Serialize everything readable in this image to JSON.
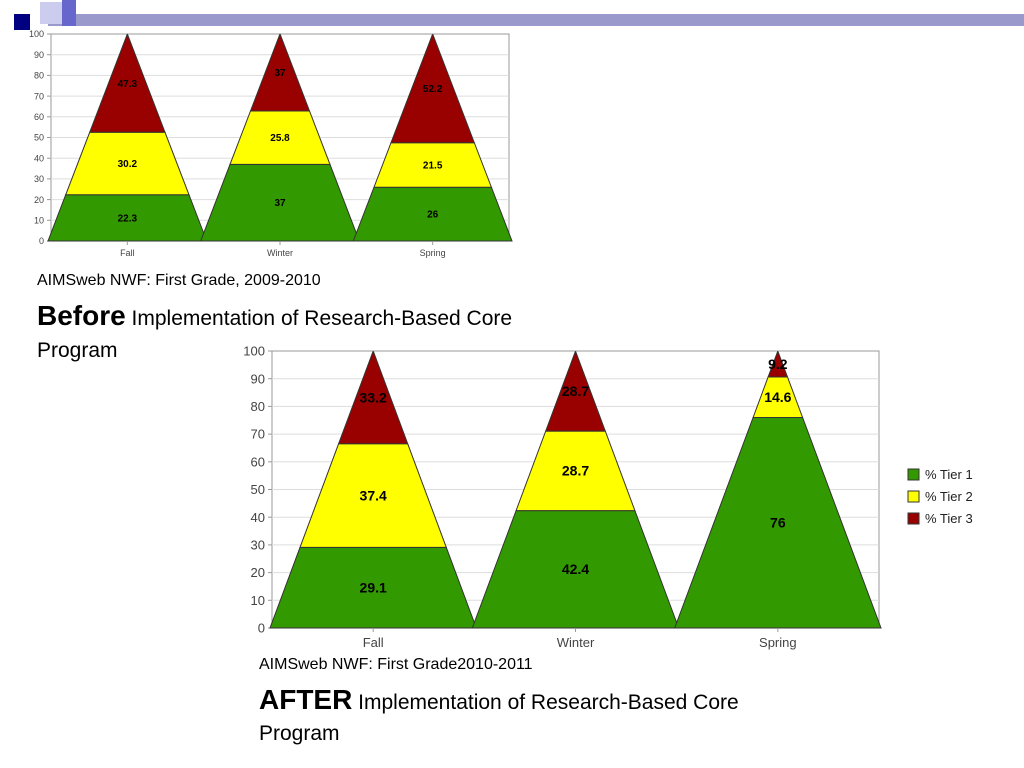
{
  "colors": {
    "tier1": "#339900",
    "tier2": "#FFFF00",
    "tier3": "#990000",
    "deco_navy": "#000080",
    "deco_blue": "#6666CC"
  },
  "captions": {
    "before": {
      "line1": "AIMSweb NWF:  First Grade, 2009-2010",
      "emphasis": "Before",
      "rest": " Implementation of Research-Based Core",
      "line3": "Program"
    },
    "after": {
      "line1": "AIMSweb NWF:  First Grade2010-2011",
      "emphasis": "AFTER",
      "rest": " Implementation of Research-Based Core",
      "line3": "Program"
    }
  },
  "chart_data": [
    {
      "type": "bar",
      "stacked": true,
      "mark_shape": "triangle",
      "categories": [
        "Fall",
        "Winter",
        "Spring"
      ],
      "series": [
        {
          "name": "% Tier 1",
          "color": "#339900",
          "values": [
            22.3,
            37,
            26
          ]
        },
        {
          "name": "% Tier 2",
          "color": "#FFFF00",
          "values": [
            30.2,
            25.8,
            21.5
          ]
        },
        {
          "name": "% Tier 3",
          "color": "#990000",
          "values": [
            47.3,
            37,
            52.2
          ]
        }
      ],
      "data_labels": [
        [
          "22.3",
          "37",
          "26"
        ],
        [
          "30.2",
          "25.8",
          "21.5"
        ],
        [
          "47.3",
          "37",
          "52.2"
        ]
      ],
      "ylim": [
        0,
        100
      ],
      "yticks": [
        "0",
        "10",
        "20",
        "30",
        "40",
        "50",
        "60",
        "70",
        "80",
        "90",
        "100"
      ],
      "grid": true,
      "legend": "none"
    },
    {
      "type": "bar",
      "stacked": true,
      "mark_shape": "triangle",
      "categories": [
        "Fall",
        "Winter",
        "Spring"
      ],
      "series": [
        {
          "name": "% Tier 1",
          "color": "#339900",
          "values": [
            29.1,
            42.4,
            76
          ]
        },
        {
          "name": "% Tier 2",
          "color": "#FFFF00",
          "values": [
            37.4,
            28.7,
            14.6
          ]
        },
        {
          "name": "% Tier 3",
          "color": "#990000",
          "values": [
            33.2,
            28.7,
            9.2
          ]
        }
      ],
      "data_labels": [
        [
          "29.1",
          "42.4",
          "76"
        ],
        [
          "37.4",
          "28.7",
          "14.6"
        ],
        [
          "33.2",
          "28.7",
          "9.2"
        ]
      ],
      "ylim": [
        0,
        100
      ],
      "yticks": [
        "0",
        "10",
        "20",
        "30",
        "40",
        "50",
        "60",
        "70",
        "80",
        "90",
        "100"
      ],
      "grid": true,
      "legend": "right"
    }
  ]
}
